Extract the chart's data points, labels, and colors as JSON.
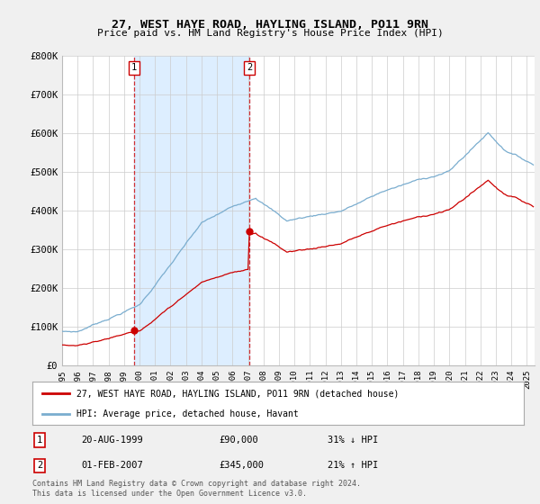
{
  "title": "27, WEST HAYE ROAD, HAYLING ISLAND, PO11 9RN",
  "subtitle": "Price paid vs. HM Land Registry's House Price Index (HPI)",
  "legend_label_red": "27, WEST HAYE ROAD, HAYLING ISLAND, PO11 9RN (detached house)",
  "legend_label_blue": "HPI: Average price, detached house, Havant",
  "transaction1_date": "20-AUG-1999",
  "transaction1_price": "£90,000",
  "transaction1_hpi": "31% ↓ HPI",
  "transaction2_date": "01-FEB-2007",
  "transaction2_price": "£345,000",
  "transaction2_hpi": "21% ↑ HPI",
  "footnote": "Contains HM Land Registry data © Crown copyright and database right 2024.\nThis data is licensed under the Open Government Licence v3.0.",
  "vline1_x": 1999.64,
  "vline2_x": 2007.08,
  "point1_x": 1999.64,
  "point1_y": 90000,
  "point2_x": 2007.08,
  "point2_y": 345000,
  "ylim": [
    0,
    800000
  ],
  "xlim": [
    1995.0,
    2025.5
  ],
  "bg_color": "#f0f0f0",
  "plot_bg_color": "#ffffff",
  "red_color": "#cc0000",
  "blue_color": "#7aadcf",
  "shade_color": "#ddeeff",
  "vline_color": "#cc0000",
  "grid_color": "#cccccc"
}
